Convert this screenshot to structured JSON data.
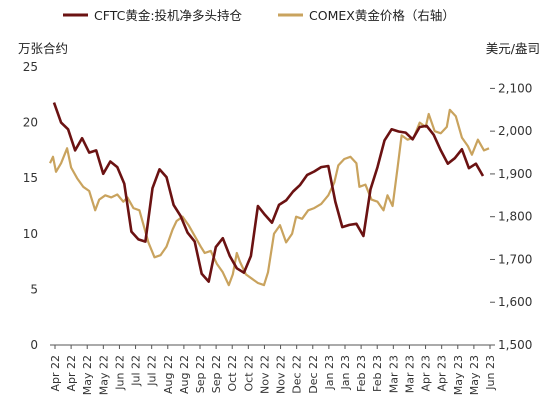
{
  "chart_data": {
    "type": "line",
    "legend": {
      "position": "top",
      "entries": [
        "CFTC黄金:投机净多头持仓",
        "COMEX黄金价格（右轴）"
      ]
    },
    "left_unit": "万张合约",
    "right_unit": "美元/盎司",
    "ylim_left": [
      0,
      25
    ],
    "ylim_right": [
      1500,
      2150
    ],
    "yticks_left": [
      "0",
      "5",
      "10",
      "15",
      "20",
      "25"
    ],
    "yticks_right": [
      "1,500",
      "1,600",
      "1,700",
      "1,800",
      "1,900",
      "2,000",
      "2,100"
    ],
    "x_tick_labels": [
      "Apr 22",
      "Apr 22",
      "May 22",
      "May 22",
      "Jun 22",
      "Jul 22",
      "Jul 22",
      "Aug 22",
      "Aug 22",
      "Sep 22",
      "Sep 22",
      "Oct 22",
      "Oct 22",
      "Nov 22",
      "Nov 22",
      "Dec 22",
      "Dec 22",
      "Jan 23",
      "Jan 23",
      "Feb 23",
      "Feb 23",
      "Mar 23",
      "Mar 23",
      "Apr 23",
      "Apr 23",
      "May 23",
      "May 23",
      "Jun 23"
    ],
    "grid": false,
    "series": [
      {
        "name": "CFTC黄金:投机净多头持仓",
        "color": "#6b1212",
        "axis": "left",
        "x": [
          "2022-04-05",
          "2022-04-12",
          "2022-04-19",
          "2022-04-26",
          "2022-05-03",
          "2022-05-10",
          "2022-05-17",
          "2022-05-24",
          "2022-05-31",
          "2022-06-07",
          "2022-06-14",
          "2022-06-21",
          "2022-06-28",
          "2022-07-05",
          "2022-07-12",
          "2022-07-19",
          "2022-07-26",
          "2022-08-02",
          "2022-08-09",
          "2022-08-16",
          "2022-08-23",
          "2022-08-30",
          "2022-09-06",
          "2022-09-13",
          "2022-09-20",
          "2022-09-27",
          "2022-10-04",
          "2022-10-11",
          "2022-10-18",
          "2022-10-25",
          "2022-11-01",
          "2022-11-08",
          "2022-11-15",
          "2022-11-22",
          "2022-11-29",
          "2022-12-06",
          "2022-12-13",
          "2022-12-20",
          "2022-12-27",
          "2023-01-03",
          "2023-01-10",
          "2023-01-17",
          "2023-01-24",
          "2023-01-31",
          "2023-02-07",
          "2023-02-14",
          "2023-02-21",
          "2023-02-28",
          "2023-03-07",
          "2023-03-14",
          "2023-03-21",
          "2023-03-28",
          "2023-04-04",
          "2023-04-11",
          "2023-04-18",
          "2023-04-25",
          "2023-05-02",
          "2023-05-09",
          "2023-05-16",
          "2023-05-23",
          "2023-05-30",
          "2023-06-06"
        ],
        "values": [
          21.8,
          20.0,
          19.4,
          17.5,
          18.6,
          17.3,
          17.5,
          15.4,
          16.5,
          16.0,
          14.5,
          10.2,
          9.5,
          9.3,
          14.1,
          15.8,
          15.1,
          12.6,
          11.6,
          10.1,
          9.3,
          6.4,
          5.7,
          8.8,
          9.6,
          8.0,
          6.9,
          6.5,
          8.0,
          12.5,
          11.7,
          11.0,
          12.6,
          13.0,
          13.8,
          14.4,
          15.3,
          15.6,
          16.0,
          16.1,
          12.9,
          10.6,
          10.8,
          10.9,
          9.8,
          14.0,
          16.0,
          18.4,
          19.4,
          19.2,
          19.1,
          18.5,
          19.6,
          19.7,
          18.9,
          17.5,
          16.3,
          16.8,
          17.6,
          15.9,
          16.3,
          15.2
        ]
      },
      {
        "name": "COMEX黄金价格（右轴）",
        "color": "#c9a35e",
        "axis": "right",
        "x": [
          "2022-04-01",
          "2022-04-04",
          "2022-04-07",
          "2022-04-12",
          "2022-04-18",
          "2022-04-22",
          "2022-04-28",
          "2022-05-04",
          "2022-05-10",
          "2022-05-16",
          "2022-05-20",
          "2022-05-26",
          "2022-06-01",
          "2022-06-07",
          "2022-06-13",
          "2022-06-17",
          "2022-06-23",
          "2022-06-29",
          "2022-07-05",
          "2022-07-08",
          "2022-07-14",
          "2022-07-20",
          "2022-07-26",
          "2022-08-01",
          "2022-08-05",
          "2022-08-11",
          "2022-08-17",
          "2022-08-23",
          "2022-08-29",
          "2022-09-02",
          "2022-09-08",
          "2022-09-14",
          "2022-09-20",
          "2022-09-26",
          "2022-09-30",
          "2022-10-04",
          "2022-10-07",
          "2022-10-13",
          "2022-10-19",
          "2022-10-25",
          "2022-10-31",
          "2022-11-04",
          "2022-11-10",
          "2022-11-16",
          "2022-11-22",
          "2022-11-28",
          "2022-12-02",
          "2022-12-08",
          "2022-12-14",
          "2022-12-20",
          "2022-12-27",
          "2023-01-03",
          "2023-01-09",
          "2023-01-13",
          "2023-01-19",
          "2023-01-25",
          "2023-01-31",
          "2023-02-03",
          "2023-02-09",
          "2023-02-15",
          "2023-02-21",
          "2023-02-27",
          "2023-03-03",
          "2023-03-08",
          "2023-03-13",
          "2023-03-17",
          "2023-03-23",
          "2023-03-29",
          "2023-04-04",
          "2023-04-10",
          "2023-04-13",
          "2023-04-19",
          "2023-04-25",
          "2023-05-01",
          "2023-05-04",
          "2023-05-10",
          "2023-05-16",
          "2023-05-22",
          "2023-05-26",
          "2023-06-01",
          "2023-06-07",
          "2023-06-12"
        ],
        "values": [
          1925,
          1940,
          1905,
          1925,
          1960,
          1915,
          1890,
          1870,
          1860,
          1815,
          1840,
          1850,
          1845,
          1852,
          1835,
          1845,
          1820,
          1815,
          1765,
          1740,
          1705,
          1710,
          1730,
          1770,
          1790,
          1800,
          1780,
          1755,
          1730,
          1715,
          1720,
          1690,
          1670,
          1640,
          1665,
          1715,
          1695,
          1665,
          1655,
          1645,
          1640,
          1670,
          1760,
          1780,
          1740,
          1760,
          1800,
          1795,
          1815,
          1820,
          1830,
          1850,
          1880,
          1920,
          1935,
          1940,
          1925,
          1870,
          1875,
          1840,
          1835,
          1815,
          1850,
          1825,
          1915,
          1990,
          1980,
          1985,
          2020,
          2010,
          2040,
          2000,
          1995,
          2010,
          2050,
          2035,
          1985,
          1965,
          1945,
          1980,
          1955,
          1960
        ]
      }
    ]
  }
}
